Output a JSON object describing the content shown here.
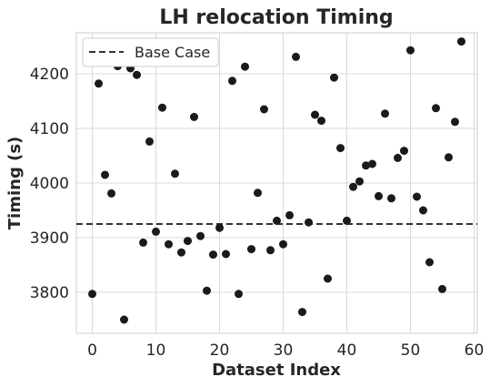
{
  "chart_data": {
    "type": "scatter",
    "title": "LH relocation Timing",
    "xlabel": "Dataset Index",
    "ylabel": "Timing (s)",
    "xlim": [
      -2.5,
      60.5
    ],
    "ylim": [
      3725,
      4275
    ],
    "xticks": [
      0,
      10,
      20,
      30,
      40,
      50,
      60
    ],
    "yticks": [
      3800,
      3900,
      4000,
      4100,
      4200
    ],
    "grid": true,
    "legend": {
      "placement": "top-left",
      "entries": [
        {
          "label": "Base Case",
          "style": "dashed"
        }
      ]
    },
    "baseline": {
      "name": "Base Case",
      "y": 3925,
      "color": "#333333"
    },
    "marker_color": "#1a1a1a",
    "x": [
      0,
      1,
      2,
      3,
      4,
      5,
      6,
      7,
      8,
      9,
      10,
      11,
      12,
      13,
      14,
      15,
      16,
      17,
      18,
      19,
      20,
      21,
      22,
      23,
      24,
      25,
      26,
      27,
      28,
      29,
      30,
      31,
      32,
      33,
      34,
      35,
      36,
      37,
      38,
      39,
      40,
      41,
      42,
      43,
      44,
      45,
      46,
      47,
      48,
      49,
      50,
      51,
      52,
      53,
      54,
      55,
      56,
      57,
      58
    ],
    "y": [
      3797,
      4182,
      4015,
      3981,
      4214,
      3750,
      4210,
      4198,
      3891,
      4076,
      3911,
      4138,
      3888,
      4017,
      3873,
      3894,
      4121,
      3903,
      3803,
      3869,
      3918,
      3870,
      4187,
      3797,
      4213,
      3879,
      3982,
      4135,
      3877,
      3931,
      3888,
      3941,
      4231,
      3764,
      3928,
      4125,
      4114,
      3825,
      4193,
      4064,
      3931,
      3993,
      4003,
      4032,
      4035,
      3976,
      4127,
      3972,
      4046,
      4059,
      4243,
      3975,
      3950,
      3855,
      4137,
      3806,
      4047,
      4112,
      4259
    ]
  }
}
